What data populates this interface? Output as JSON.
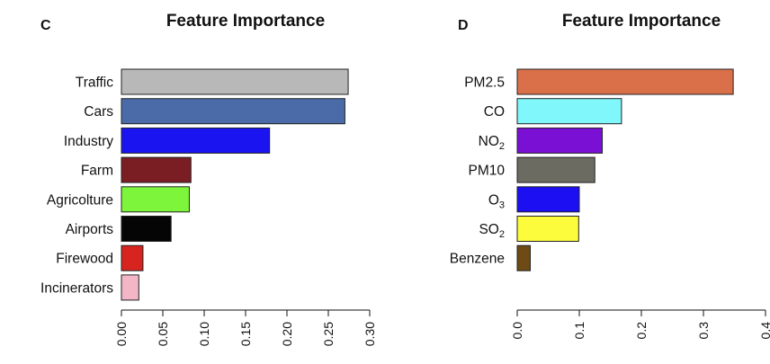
{
  "chart_data": [
    {
      "type": "bar",
      "orientation": "horizontal",
      "panel": "C",
      "title": "Feature Importance",
      "xlabel": "",
      "ylabel": "",
      "grid": false,
      "xlim": [
        0,
        0.3
      ],
      "xticks": [
        "0.00",
        "0.05",
        "0.10",
        "0.15",
        "0.20",
        "0.25",
        "0.30"
      ],
      "xtick_values": [
        0,
        0.05,
        0.1,
        0.15,
        0.2,
        0.25,
        0.3
      ],
      "categories": [
        {
          "label": "Traffic",
          "sub": ""
        },
        {
          "label": "Cars",
          "sub": ""
        },
        {
          "label": "Industry",
          "sub": ""
        },
        {
          "label": "Farm",
          "sub": ""
        },
        {
          "label": "Agricolture",
          "sub": ""
        },
        {
          "label": "Airports",
          "sub": ""
        },
        {
          "label": "Firewood",
          "sub": ""
        },
        {
          "label": "Incinerators",
          "sub": ""
        }
      ],
      "values": [
        0.274,
        0.27,
        0.179,
        0.084,
        0.082,
        0.06,
        0.026,
        0.021
      ],
      "colors": [
        "#b8b8b8",
        "#4a6ba8",
        "#1a14f0",
        "#7a1e24",
        "#7cf53a",
        "#050505",
        "#d8241e",
        "#f2b6c6"
      ]
    },
    {
      "type": "bar",
      "orientation": "horizontal",
      "panel": "D",
      "title": "Feature Importance",
      "xlabel": "",
      "ylabel": "",
      "grid": false,
      "xlim": [
        0,
        0.4
      ],
      "xticks": [
        "0.0",
        "0.1",
        "0.2",
        "0.3",
        "0.4"
      ],
      "xtick_values": [
        0,
        0.1,
        0.2,
        0.3,
        0.4
      ],
      "categories": [
        {
          "label": "PM2.5",
          "sub": ""
        },
        {
          "label": "CO",
          "sub": ""
        },
        {
          "label": "NO",
          "sub": "2"
        },
        {
          "label": "PM10",
          "sub": ""
        },
        {
          "label": "O",
          "sub": "3"
        },
        {
          "label": "SO",
          "sub": "2"
        },
        {
          "label": "Benzene",
          "sub": ""
        }
      ],
      "values": [
        0.348,
        0.168,
        0.137,
        0.125,
        0.1,
        0.099,
        0.021
      ],
      "colors": [
        "#d9704a",
        "#80f7fb",
        "#7a10d4",
        "#6b6b62",
        "#1c10f2",
        "#fdfc3c",
        "#6e4a14"
      ]
    }
  ]
}
